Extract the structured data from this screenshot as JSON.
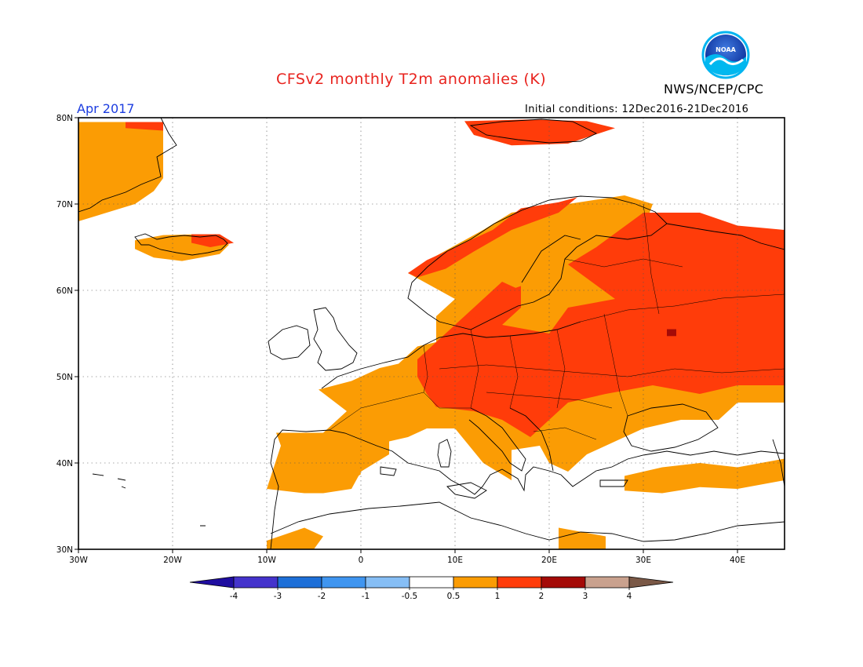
{
  "title": "CFSv2 monthly T2m anomalies (K)",
  "agency": "NWS/NCEP/CPC",
  "logo_text": "NOAA",
  "valid_month": "Apr 2017",
  "initial_conditions": "Initial conditions: 12Dec2016-21Dec2016",
  "map": {
    "lon_range": [
      -30,
      45
    ],
    "lat_range": [
      30,
      80
    ],
    "lat_labels": [
      "80N",
      "70N",
      "60N",
      "50N",
      "40N",
      "30N"
    ],
    "lon_labels": [
      "30W",
      "20W",
      "10W",
      "0",
      "10E",
      "20E",
      "30E",
      "40E"
    ],
    "gridlines": "dotted"
  },
  "colorbar": {
    "labels": [
      "-4",
      "-3",
      "-2",
      "-1",
      "-0.5",
      "0.5",
      "1",
      "2",
      "3",
      "4"
    ],
    "colors": [
      "#1f0da0",
      "#4433cc",
      "#1d6fd8",
      "#3f95f0",
      "#86bef5",
      "#ffffff",
      "#fb9c04",
      "#ff3c0a",
      "#a40a07",
      "#c9a18e",
      "#7a5846"
    ]
  },
  "anomaly_categories": {
    "0.5-1": "#fb9c04",
    "1-2": "#ff3c0a",
    "2-3": "#a40a07"
  },
  "anomaly_regions": [
    {
      "category": "0.5-1",
      "description": "Greenland east coast",
      "polygon": [
        [
          -30,
          79.5
        ],
        [
          -21,
          79.5
        ],
        [
          -21,
          73
        ],
        [
          -22,
          71.5
        ],
        [
          -24,
          70
        ],
        [
          -27,
          69
        ],
        [
          -30,
          68
        ]
      ]
    },
    {
      "category": "0.5-1",
      "description": "Iceland",
      "polygon": [
        [
          -24,
          65.8
        ],
        [
          -21,
          66.4
        ],
        [
          -17,
          66.5
        ],
        [
          -14,
          65.3
        ],
        [
          -15,
          64.2
        ],
        [
          -19,
          63.4
        ],
        [
          -22,
          63.8
        ],
        [
          -24,
          64.8
        ]
      ]
    },
    {
      "category": "0.5-1",
      "description": "Western and central Europe",
      "polygon": [
        [
          -10,
          37
        ],
        [
          -8.5,
          42
        ],
        [
          -9,
          43.5
        ],
        [
          -4,
          43.5
        ],
        [
          -1.5,
          46
        ],
        [
          -4.5,
          48.5
        ],
        [
          -1,
          49.5
        ],
        [
          2,
          51
        ],
        [
          4,
          51.5
        ],
        [
          6,
          53.5
        ],
        [
          8,
          54
        ],
        [
          8,
          57
        ],
        [
          10,
          59
        ],
        [
          5,
          62
        ],
        [
          8,
          64
        ],
        [
          13,
          67
        ],
        [
          16,
          69
        ],
        [
          22,
          70
        ],
        [
          28,
          71
        ],
        [
          31,
          70
        ],
        [
          30,
          67
        ],
        [
          27,
          64
        ],
        [
          30,
          61
        ],
        [
          34,
          58
        ],
        [
          40,
          57
        ],
        [
          45,
          56
        ],
        [
          45,
          47
        ],
        [
          40,
          47
        ],
        [
          38,
          45
        ],
        [
          34,
          45
        ],
        [
          30,
          44
        ],
        [
          28,
          43
        ],
        [
          24,
          41
        ],
        [
          22,
          39
        ],
        [
          20,
          40
        ],
        [
          19,
          42
        ],
        [
          16,
          41.5
        ],
        [
          16,
          38
        ],
        [
          13,
          40
        ],
        [
          10,
          44
        ],
        [
          7,
          44
        ],
        [
          5,
          43
        ],
        [
          3,
          42.5
        ],
        [
          3,
          41
        ],
        [
          0,
          39
        ],
        [
          -1,
          37
        ],
        [
          -4,
          36.5
        ],
        [
          -6,
          36.5
        ]
      ]
    },
    {
      "category": "0.5-1",
      "description": "Southern Spain",
      "polygon": [
        [
          -6,
          37.5
        ],
        [
          -2,
          37.2
        ],
        [
          0,
          38.7
        ],
        [
          -0.5,
          40.5
        ],
        [
          -3,
          40
        ],
        [
          -5,
          38.8
        ]
      ]
    },
    {
      "category": "0.5-1",
      "description": "Anatolia",
      "polygon": [
        [
          28,
          38.5
        ],
        [
          32,
          39.5
        ],
        [
          36,
          40
        ],
        [
          40,
          39.5
        ],
        [
          45,
          40.5
        ],
        [
          45,
          38
        ],
        [
          40,
          37
        ],
        [
          36,
          37.2
        ],
        [
          32,
          36.5
        ],
        [
          28,
          36.8
        ]
      ]
    },
    {
      "category": "0.5-1",
      "description": "North Africa coast",
      "polygon": [
        [
          -10,
          31
        ],
        [
          -6,
          32.5
        ],
        [
          -4,
          31.5
        ],
        [
          -5,
          30
        ],
        [
          -10,
          30
        ]
      ]
    },
    {
      "category": "0.5-1",
      "description": "Libya coast",
      "polygon": [
        [
          21,
          32.5
        ],
        [
          26,
          31.5
        ],
        [
          26,
          30
        ],
        [
          21,
          30
        ]
      ]
    },
    {
      "category": "1-2",
      "description": "Svalbard",
      "polygon": [
        [
          11,
          79.6
        ],
        [
          18,
          79.8
        ],
        [
          24,
          79.6
        ],
        [
          27,
          78.8
        ],
        [
          22,
          77
        ],
        [
          16,
          76.8
        ],
        [
          12,
          78
        ]
      ]
    },
    {
      "category": "1-2",
      "description": "Norwegian coast",
      "polygon": [
        [
          5,
          62
        ],
        [
          7,
          63.5
        ],
        [
          10,
          65
        ],
        [
          14,
          67
        ],
        [
          17,
          69.5
        ],
        [
          21,
          70.2
        ],
        [
          23,
          70.8
        ],
        [
          21,
          69
        ],
        [
          16,
          67
        ],
        [
          12,
          64.5
        ],
        [
          9,
          62.5
        ],
        [
          6,
          61.5
        ]
      ]
    },
    {
      "category": "1-2",
      "description": "Central and eastern Europe",
      "polygon": [
        [
          6,
          52
        ],
        [
          9,
          55
        ],
        [
          11,
          57
        ],
        [
          13,
          59
        ],
        [
          17,
          60.5
        ],
        [
          17,
          58
        ],
        [
          15,
          56
        ],
        [
          20,
          55
        ],
        [
          22,
          58
        ],
        [
          27,
          59
        ],
        [
          22,
          63
        ],
        [
          25,
          65
        ],
        [
          30,
          69
        ],
        [
          36,
          69
        ],
        [
          40,
          67.5
        ],
        [
          45,
          67
        ],
        [
          45,
          49
        ],
        [
          40,
          49
        ],
        [
          36,
          48
        ],
        [
          31,
          49
        ],
        [
          26,
          48
        ],
        [
          22,
          47
        ],
        [
          20,
          45
        ],
        [
          18,
          43
        ],
        [
          15,
          45
        ],
        [
          12,
          46
        ],
        [
          8,
          46.5
        ],
        [
          7,
          48
        ],
        [
          6,
          50
        ]
      ]
    },
    {
      "category": "1-2",
      "description": "Southern Sweden",
      "polygon": [
        [
          11.5,
          57
        ],
        [
          13,
          59
        ],
        [
          15,
          61
        ],
        [
          17,
          60
        ],
        [
          16,
          58
        ],
        [
          14,
          56.5
        ]
      ]
    },
    {
      "category": "1-2",
      "description": "Iceland north",
      "polygon": [
        [
          -18,
          66.5
        ],
        [
          -15,
          66.5
        ],
        [
          -13.5,
          65.5
        ],
        [
          -16,
          65
        ],
        [
          -18,
          65.5
        ]
      ]
    },
    {
      "category": "1-2",
      "description": "Greenland coast patch",
      "polygon": [
        [
          -25,
          79.5
        ],
        [
          -21,
          79.5
        ],
        [
          -21,
          78.5
        ],
        [
          -25,
          78.8
        ]
      ]
    },
    {
      "category": "2-3",
      "description": "Central Russia hotspot",
      "polygon": [
        [
          32.5,
          55.5
        ],
        [
          33.5,
          55.5
        ],
        [
          33.5,
          54.7
        ],
        [
          32.5,
          54.7
        ]
      ]
    }
  ]
}
